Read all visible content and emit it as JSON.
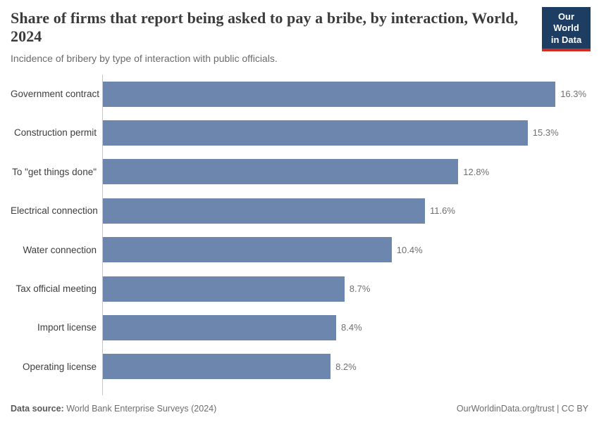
{
  "header": {
    "title": "Share of firms that report being asked to pay a bribe, by interaction, World, 2024",
    "subtitle": "Incidence of bribery by type of interaction with public officials.",
    "logo": {
      "line1": "Our World",
      "line2": "in Data"
    }
  },
  "chart_data": {
    "type": "bar",
    "orientation": "horizontal",
    "title": "Share of firms that report being asked to pay a bribe, by interaction, World, 2024",
    "categories": [
      "Government contract",
      "Construction permit",
      "To \"get things done\"",
      "Electrical connection",
      "Water connection",
      "Tax official meeting",
      "Import license",
      "Operating license"
    ],
    "values": [
      16.3,
      15.3,
      12.8,
      11.6,
      10.4,
      8.7,
      8.4,
      8.2
    ],
    "value_labels": [
      "16.3%",
      "15.3%",
      "12.8%",
      "11.6%",
      "10.4%",
      "8.7%",
      "8.4%",
      "8.2%"
    ],
    "xlabel": "",
    "ylabel": "",
    "xlim": [
      0,
      16.3
    ],
    "grid": false,
    "legend_position": "none",
    "bar_color": "#6d86ae"
  },
  "footer": {
    "source_label": "Data source:",
    "source_text": " World Bank Enterprise Surveys (2024)",
    "credit": "OurWorldinData.org/trust | CC BY"
  },
  "colors": {
    "bar": "#6d86ae",
    "logo_bg": "#1d3d63",
    "logo_accent": "#d42b21",
    "axis": "#c6c6c6",
    "title_text": "#3b3b3b",
    "subtitle_text": "#6b6b6b"
  }
}
